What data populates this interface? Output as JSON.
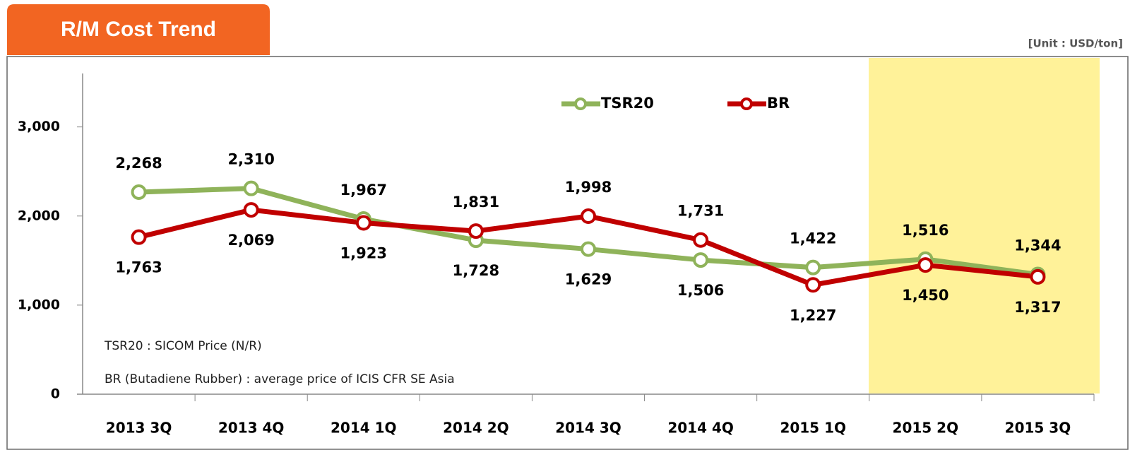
{
  "chart_data": {
    "type": "line",
    "title": "R/M Cost Trend",
    "subtitle": "[Unit : USD/ton]",
    "annotations": [
      "TSR20 : SICOM Price (N/R)",
      "BR (Butadiene Rubber) :  average price of ICIS CFR SE Asia"
    ],
    "categories": [
      "2013 3Q",
      "2013 4Q",
      "2014 1Q",
      "2014 2Q",
      "2014 3Q",
      "2014 4Q",
      "2015 1Q",
      "2015 2Q",
      "2015 3Q"
    ],
    "series": [
      {
        "name": "TSR20",
        "color": "#8fb35a",
        "values": [
          2268,
          2310,
          1967,
          1728,
          1629,
          1506,
          1422,
          1516,
          1344
        ],
        "value_labels": [
          "2,268",
          "2,310",
          "1,967",
          "1,728",
          "1,629",
          "1,506",
          "1,422",
          "1,516",
          "1,344"
        ]
      },
      {
        "name": "BR",
        "color": "#c00000",
        "values": [
          1763,
          2069,
          1923,
          1831,
          1998,
          1731,
          1227,
          1450,
          1317
        ],
        "value_labels": [
          "1,763",
          "2,069",
          "1,923",
          "1,831",
          "1,998",
          "1,731",
          "1,227",
          "1,450",
          "1,317"
        ]
      }
    ],
    "ylim": [
      0,
      3600
    ],
    "yticks": [
      0,
      {
        "value": 1000,
        "label": "1,000"
      },
      {
        "value": 2000,
        "label": "2,000"
      },
      {
        "value": 3000,
        "label": "3,000"
      }
    ],
    "grid": false,
    "legend": "top"
  }
}
